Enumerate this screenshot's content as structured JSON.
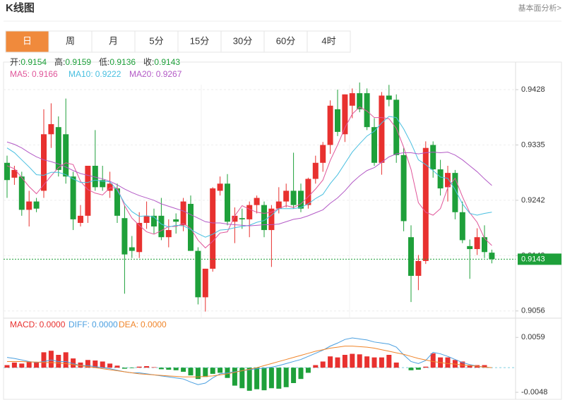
{
  "header": {
    "title": "K线图",
    "link": "基本面分析>"
  },
  "tabs": [
    "日",
    "周",
    "月",
    "5分",
    "15分",
    "30分",
    "60分",
    "4时"
  ],
  "active_tab": 0,
  "chart_data": [
    {
      "type": "candlestick",
      "up_color": "#e8312f",
      "down_color": "#1ea03a",
      "quote": [
        {
          "label": "开:",
          "value": "0.9154"
        },
        {
          "label": "高:",
          "value": "0.9159"
        },
        {
          "label": "低:",
          "value": "0.9136"
        },
        {
          "label": "收:",
          "value": "0.9143"
        }
      ],
      "quote_color": "#1ea03a",
      "open": [
        0.9305,
        0.928,
        0.9282,
        0.9226,
        0.924,
        0.9258,
        0.9353,
        0.9365,
        0.9353,
        0.9282,
        0.9204,
        0.9216,
        0.93,
        0.9276,
        0.9258,
        0.9262,
        0.9212,
        0.9163,
        0.9155,
        0.9204,
        0.9216,
        0.9216,
        0.918,
        0.921,
        0.92,
        0.9236,
        0.9157,
        0.9079,
        0.9127,
        0.9258,
        0.927,
        0.9206,
        0.9212,
        0.921,
        0.9234,
        0.9234,
        0.9192,
        0.9228,
        0.924,
        0.9258,
        0.9258,
        0.9234,
        0.9278,
        0.9305,
        0.9335,
        0.9395,
        0.9353,
        0.9401,
        0.9422,
        0.9422,
        0.9365,
        0.9305,
        0.9418,
        0.9411,
        0.9318,
        0.918,
        0.9115,
        0.914,
        0.9335,
        0.9294,
        0.9264,
        0.9288,
        0.9222,
        0.9165,
        0.916,
        0.918,
        0.9154
      ],
      "high": [
        0.9317,
        0.93,
        0.929,
        0.9258,
        0.9246,
        0.9395,
        0.9405,
        0.9383,
        0.9413,
        0.929,
        0.9234,
        0.93,
        0.936,
        0.93,
        0.929,
        0.927,
        0.9234,
        0.9182,
        0.9222,
        0.924,
        0.9228,
        0.9246,
        0.921,
        0.922,
        0.9246,
        0.925,
        0.9163,
        0.9127,
        0.9264,
        0.9282,
        0.9286,
        0.923,
        0.9228,
        0.924,
        0.925,
        0.924,
        0.9234,
        0.9264,
        0.927,
        0.9322,
        0.927,
        0.928,
        0.9317,
        0.934,
        0.941,
        0.9428,
        0.942,
        0.943,
        0.944,
        0.943,
        0.938,
        0.9424,
        0.9436,
        0.942,
        0.933,
        0.92,
        0.915,
        0.9341,
        0.9341,
        0.931,
        0.93,
        0.9293,
        0.924,
        0.9176,
        0.9195,
        0.92,
        0.9159
      ],
      "low": [
        0.9246,
        0.9268,
        0.9216,
        0.9198,
        0.9222,
        0.9246,
        0.933,
        0.9282,
        0.927,
        0.9192,
        0.9198,
        0.9204,
        0.9258,
        0.9258,
        0.9246,
        0.9204,
        0.9085,
        0.9145,
        0.9145,
        0.9194,
        0.9186,
        0.9175,
        0.9163,
        0.9186,
        0.919,
        0.9157,
        0.9067,
        0.9055,
        0.9122,
        0.925,
        0.92,
        0.917,
        0.9194,
        0.918,
        0.922,
        0.918,
        0.913,
        0.922,
        0.923,
        0.9228,
        0.9222,
        0.9228,
        0.927,
        0.929,
        0.932,
        0.935,
        0.934,
        0.938,
        0.939,
        0.936,
        0.93,
        0.9285,
        0.94,
        0.9305,
        0.919,
        0.9071,
        0.9091,
        0.9135,
        0.928,
        0.925,
        0.924,
        0.921,
        0.917,
        0.911,
        0.915,
        0.9145,
        0.9136
      ],
      "close": [
        0.9276,
        0.9293,
        0.9226,
        0.924,
        0.9228,
        0.9353,
        0.937,
        0.9293,
        0.9282,
        0.921,
        0.9216,
        0.93,
        0.9264,
        0.9264,
        0.927,
        0.9216,
        0.9151,
        0.9157,
        0.9204,
        0.9216,
        0.9198,
        0.918,
        0.9192,
        0.9206,
        0.924,
        0.9157,
        0.9079,
        0.9127,
        0.9262,
        0.927,
        0.9206,
        0.9216,
        0.921,
        0.9234,
        0.9246,
        0.9192,
        0.9228,
        0.924,
        0.9258,
        0.9234,
        0.9228,
        0.9278,
        0.9305,
        0.9335,
        0.9401,
        0.9357,
        0.942,
        0.9422,
        0.9395,
        0.9365,
        0.9305,
        0.9418,
        0.9411,
        0.9318,
        0.9207,
        0.9115,
        0.914,
        0.933,
        0.9294,
        0.9262,
        0.9288,
        0.9222,
        0.9175,
        0.916,
        0.918,
        0.9155,
        0.9143
      ],
      "series": [
        {
          "name": "MA5:",
          "current": "0.9166",
          "color": "#e0569a",
          "values": [
            0.93,
            0.9295,
            0.928,
            0.9265,
            0.9253,
            0.9268,
            0.9283,
            0.9297,
            0.9305,
            0.9302,
            0.9274,
            0.926,
            0.9254,
            0.9251,
            0.9263,
            0.9263,
            0.9233,
            0.9212,
            0.92,
            0.9189,
            0.9185,
            0.9191,
            0.9198,
            0.9198,
            0.9203,
            0.9195,
            0.9175,
            0.9162,
            0.9173,
            0.9187,
            0.9189,
            0.9216,
            0.9233,
            0.9227,
            0.9222,
            0.922,
            0.9222,
            0.9228,
            0.9233,
            0.923,
            0.9236,
            0.9248,
            0.9261,
            0.9276,
            0.9309,
            0.9335,
            0.9364,
            0.9387,
            0.9399,
            0.9392,
            0.9381,
            0.9381,
            0.9379,
            0.9363,
            0.9331,
            0.9294,
            0.9238,
            0.9222,
            0.9217,
            0.9228,
            0.9263,
            0.9279,
            0.9248,
            0.9221,
            0.9205,
            0.9178,
            0.9166
          ]
        },
        {
          "name": "MA10:",
          "current": "0.9222",
          "color": "#48bfe0",
          "values": [
            0.933,
            0.9322,
            0.931,
            0.9298,
            0.9285,
            0.9284,
            0.9289,
            0.9289,
            0.9285,
            0.9278,
            0.9272,
            0.9272,
            0.9276,
            0.9274,
            0.9273,
            0.9259,
            0.9237,
            0.9223,
            0.9215,
            0.9216,
            0.9214,
            0.9202,
            0.9197,
            0.92,
            0.9199,
            0.9193,
            0.9186,
            0.918,
            0.9185,
            0.9192,
            0.9193,
            0.9196,
            0.9198,
            0.92,
            0.9205,
            0.9208,
            0.9217,
            0.9228,
            0.9228,
            0.9228,
            0.923,
            0.9236,
            0.9245,
            0.9252,
            0.927,
            0.9285,
            0.9304,
            0.9323,
            0.9337,
            0.935,
            0.9358,
            0.9372,
            0.9383,
            0.9381,
            0.9362,
            0.9338,
            0.931,
            0.9302,
            0.9292,
            0.9281,
            0.9279,
            0.926,
            0.9236,
            0.922,
            0.9217,
            0.922,
            0.9222
          ]
        },
        {
          "name": "MA20:",
          "current": "0.9267",
          "color": "#b35ac6",
          "values": [
            0.934,
            0.9336,
            0.933,
            0.9322,
            0.9315,
            0.931,
            0.9307,
            0.9303,
            0.9298,
            0.9292,
            0.9287,
            0.9284,
            0.9281,
            0.9278,
            0.9274,
            0.9268,
            0.9261,
            0.9255,
            0.925,
            0.9246,
            0.9242,
            0.9236,
            0.9232,
            0.9228,
            0.9224,
            0.9218,
            0.9212,
            0.9206,
            0.9204,
            0.9204,
            0.9202,
            0.9201,
            0.92,
            0.9199,
            0.92,
            0.9201,
            0.9201,
            0.9202,
            0.9206,
            0.921,
            0.9212,
            0.9216,
            0.9221,
            0.9226,
            0.9237,
            0.9246,
            0.9258,
            0.9272,
            0.9283,
            0.9292,
            0.9297,
            0.9306,
            0.9315,
            0.932,
            0.9322,
            0.9322,
            0.932,
            0.9322,
            0.9323,
            0.9322,
            0.9323,
            0.9318,
            0.931,
            0.93,
            0.929,
            0.9278,
            0.9267
          ]
        }
      ],
      "last_price": 0.9143,
      "ylim": [
        0.9051,
        0.9466
      ],
      "yticks": [
        0.9056,
        0.9149,
        0.9242,
        0.9335,
        0.9428
      ],
      "grid": true
    },
    {
      "type": "macd",
      "up_color": "#e8312f",
      "down_color": "#1ea03a",
      "bar_name": "MACD:",
      "bar_current": "0.0000",
      "bar_color": "#e8312f",
      "values": [
        0.0005,
        0.001,
        0.0008,
        0.0012,
        0.001,
        0.003,
        0.0033,
        0.0025,
        0.003,
        0.0018,
        0.001,
        0.0015,
        0.0014,
        0.0012,
        0.0008,
        0.0004,
        -0.0002,
        -0.0001,
        0.0002,
        0.0003,
        0.0001,
        -0.0003,
        -0.0004,
        -0.0005,
        -0.0008,
        -0.0015,
        -0.0022,
        -0.0018,
        -0.0012,
        -0.001,
        -0.002,
        -0.0035,
        -0.004,
        -0.0045,
        -0.0042,
        -0.0044,
        -0.004,
        -0.0041,
        -0.0038,
        -0.003,
        -0.0022,
        -0.001,
        0.0005,
        0.0012,
        0.0022,
        0.002,
        0.0025,
        0.0027,
        0.0026,
        0.0022,
        0.002,
        0.002,
        0.0025,
        0.001,
        0,
        -0.0005,
        -0.0004,
        0.0002,
        0.0028,
        0.002,
        0.002,
        0.0015,
        0.0012,
        0.0005,
        0.0005,
        0.0005,
        0
      ],
      "series": [
        {
          "name": "DIFF:",
          "current": "0.0000",
          "color": "#4a9fe0",
          "values": [
            0.002,
            0.0018,
            0.0015,
            0.0012,
            0.001,
            0.0012,
            0.0015,
            0.0012,
            0.0012,
            0.0008,
            0.0004,
            0.0004,
            0.0002,
            0,
            -0.0002,
            -0.0005,
            -0.0008,
            -0.001,
            -0.001,
            -0.0012,
            -0.0014,
            -0.0016,
            -0.0018,
            -0.002,
            -0.0022,
            -0.0028,
            -0.0033,
            -0.003,
            -0.002,
            -0.0012,
            -0.001,
            -0.0008,
            -0.0006,
            -0.0004,
            -0.0002,
            -0.0001,
            0.0001,
            0.0004,
            0.0008,
            0.0012,
            0.0016,
            0.0022,
            0.0028,
            0.0034,
            0.0042,
            0.0048,
            0.0055,
            0.0058,
            0.0056,
            0.0054,
            0.005,
            0.0048,
            0.0046,
            0.004,
            0.0025,
            0.0012,
            0.0008,
            0.0014,
            0.003,
            0.0027,
            0.0022,
            0.0016,
            0.001,
            0.0006,
            0.0003,
            0.0001,
            0
          ]
        },
        {
          "name": "DEA:",
          "current": "0.0000",
          "color": "#f0852a",
          "values": [
            0.0012,
            0.0012,
            0.0012,
            0.0011,
            0.0011,
            0.001,
            0.001,
            0.0009,
            0.0008,
            0.0006,
            0.0004,
            0.0002,
            0,
            -0.0002,
            -0.0004,
            -0.0006,
            -0.0008,
            -0.001,
            -0.0012,
            -0.0013,
            -0.0014,
            -0.0015,
            -0.0016,
            -0.0017,
            -0.0018,
            -0.0018,
            -0.0018,
            -0.0017,
            -0.0016,
            -0.0014,
            -0.0012,
            -0.0009,
            -0.0006,
            -0.0003,
            0,
            0.0004,
            0.0008,
            0.0012,
            0.0016,
            0.002,
            0.0024,
            0.0028,
            0.0032,
            0.0035,
            0.0038,
            0.004,
            0.0042,
            0.0042,
            0.0041,
            0.004,
            0.0038,
            0.0035,
            0.0032,
            0.0029,
            0.0026,
            0.0022,
            0.0018,
            0.0015,
            0.0012,
            0.001,
            0.0008,
            0.0007,
            0.0005,
            0.0004,
            0.0003,
            0.0001,
            0
          ]
        }
      ],
      "ylim": [
        -0.0063,
        0.0091
      ],
      "yticks": [
        -0.0048,
        0.0059
      ]
    }
  ]
}
